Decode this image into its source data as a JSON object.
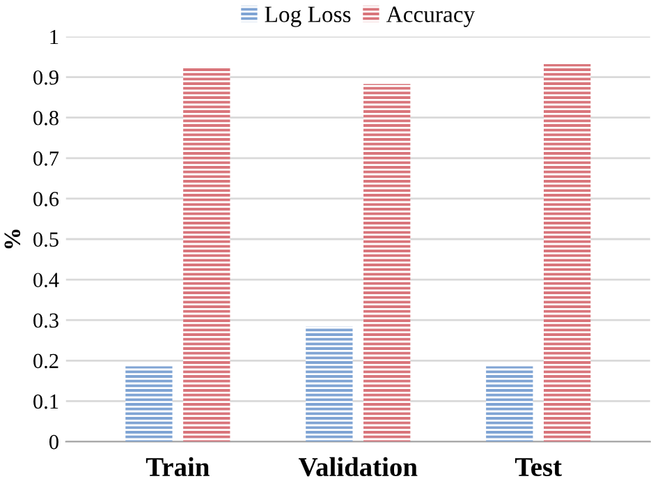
{
  "chart_data": {
    "type": "bar",
    "ylabel": "%",
    "categories": [
      "Train",
      "Validation",
      "Test"
    ],
    "series": [
      {
        "name": "Log Loss",
        "color": "#7fa4d4",
        "values": [
          0.186,
          0.284,
          0.186
        ]
      },
      {
        "name": "Accuracy",
        "color": "#d9757b",
        "values": [
          0.925,
          0.883,
          0.932
        ]
      }
    ],
    "ylim": [
      0,
      1
    ],
    "yticks": [
      0,
      0.1,
      0.2,
      0.3,
      0.4,
      0.5,
      0.6,
      0.7,
      0.8,
      0.9,
      1
    ],
    "grid": "y",
    "legend": "top"
  }
}
